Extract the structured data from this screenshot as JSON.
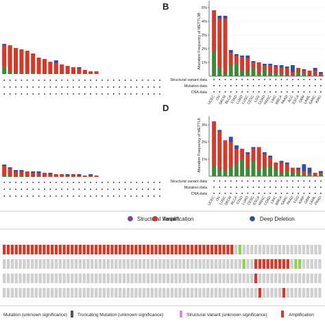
{
  "chart_data": [
    {
      "type": "stacked_bar",
      "categories": [
        null,
        null,
        null,
        null,
        null,
        null,
        null,
        null,
        null,
        null,
        null,
        null,
        null,
        null,
        null,
        null,
        null,
        null,
        null,
        null,
        null,
        null,
        null,
        null,
        null,
        null,
        null,
        null
      ],
      "ylim": [
        0,
        5.5
      ],
      "series": [
        {
          "color": "#3a8a3a",
          "values": [
            0.5,
            0.2,
            0.1,
            0.1,
            0.1,
            0.1,
            0,
            0,
            0,
            0,
            0,
            0,
            0,
            0,
            0,
            0,
            0,
            0,
            0,
            0,
            0,
            0,
            0,
            0,
            0,
            0,
            0,
            0
          ]
        },
        {
          "color": "#d33a2c",
          "values": [
            1.6,
            1.9,
            1.8,
            1.7,
            1.6,
            1.4,
            1.2,
            1.1,
            0.9,
            0.8,
            0.7,
            0.6,
            0.5,
            0.4,
            0.3,
            0.2,
            0.2,
            0,
            0,
            0,
            0,
            0,
            0,
            0,
            0,
            0,
            0,
            0
          ]
        },
        {
          "color": "#2f4fa8",
          "values": [
            0.1,
            0,
            0,
            0,
            0,
            0,
            0,
            0,
            0,
            0.2,
            0,
            0,
            0,
            0.1,
            0,
            0,
            0,
            0,
            0,
            0,
            0,
            0,
            0,
            0,
            0,
            0,
            0,
            0
          ]
        }
      ]
    },
    {
      "type": "stacked_bar",
      "panel": "B",
      "ylabel": "Alteration Frequency of METTL3B",
      "categories": [
        "UCEC",
        "OV",
        "SKCM",
        "BLCA",
        "STAD",
        "LUAD",
        "LUSC",
        "CESC",
        "LGG",
        "COAD",
        "HNSC",
        "LIHC",
        "BRCA",
        "PAAD",
        "ACC",
        "ESCA",
        "GBM",
        "LAML",
        "SARC",
        "KIRC"
      ],
      "ylim": [
        0,
        5.5
      ],
      "yticks": [
        {
          "value": 1,
          "label": "1%"
        },
        {
          "value": 2,
          "label": "2%"
        },
        {
          "value": 3,
          "label": "3%"
        },
        {
          "value": 4,
          "label": "4%"
        },
        {
          "value": 5,
          "label": "5%"
        }
      ],
      "row_labels": [
        "Structural variant data",
        "Mutation data",
        "CNA data"
      ],
      "series": [
        {
          "color": "#3a8a3a",
          "values": [
            1.8,
            0.6,
            0.2,
            0.8,
            0.9,
            0.4,
            0.3,
            0.6,
            0.2,
            0.5,
            0.2,
            0.2,
            0.2,
            0.1,
            0,
            0.3,
            0.2,
            0,
            0.1,
            0
          ]
        },
        {
          "color": "#d33a2c",
          "values": [
            3.0,
            3.6,
            4.0,
            0.9,
            0.6,
            1.0,
            1.0,
            0.4,
            0.8,
            0.3,
            0.6,
            0.5,
            0.4,
            0.5,
            0.3,
            0.3,
            0.2,
            0.4,
            0.3,
            0.2
          ]
        },
        {
          "color": "#2f4fa8",
          "values": [
            0,
            0.2,
            0.2,
            0.2,
            0.1,
            0.1,
            0.2,
            0.1,
            0,
            0.1,
            0.1,
            0.1,
            0.2,
            0.1,
            0.5,
            0,
            0.1,
            0,
            0.2,
            0.1
          ]
        }
      ]
    },
    {
      "type": "stacked_bar",
      "categories": [
        null,
        null,
        null,
        null,
        null,
        null,
        null,
        null,
        null,
        null,
        null,
        null,
        null,
        null,
        null,
        null,
        null,
        null,
        null,
        null,
        null,
        null,
        null,
        null,
        null,
        null,
        null,
        null
      ],
      "ylim": [
        0,
        5.5
      ],
      "series": [
        {
          "color": "#3a8a3a",
          "values": [
            0.1,
            0.1,
            0,
            0.1,
            0,
            0,
            0.1,
            0,
            0,
            0,
            0,
            0,
            0,
            0,
            0,
            0,
            0,
            0,
            0,
            0,
            0,
            0,
            0,
            0,
            0,
            0,
            0,
            0
          ]
        },
        {
          "color": "#d33a2c",
          "values": [
            0.7,
            0.5,
            0.4,
            0.3,
            0.4,
            0.3,
            0.2,
            0.3,
            0.2,
            0.2,
            0.2,
            0.1,
            0.2,
            0.1,
            0.1,
            0.1,
            0.1,
            0,
            0,
            0,
            0,
            0,
            0,
            0,
            0,
            0,
            0,
            0
          ]
        },
        {
          "color": "#2f4fa8",
          "values": [
            0.1,
            0.1,
            0.1,
            0.1,
            0,
            0.1,
            0.1,
            0,
            0.1,
            0,
            0,
            0.1,
            0,
            0.1,
            0,
            0.1,
            0,
            0,
            0,
            0,
            0,
            0,
            0,
            0,
            0,
            0,
            0,
            0
          ]
        }
      ]
    },
    {
      "type": "stacked_bar",
      "panel": "D",
      "ylabel": "Alteration Frequency of METTL8",
      "categories": [
        "UCEC",
        "OV",
        "LUSC",
        "SKCM",
        "BLCA",
        "STAD",
        "LUAD",
        "CESC",
        "ESCA",
        "HNSC",
        "COAD",
        "LIHC",
        "BRCA",
        "SARC",
        "PAAD",
        "LGG",
        "KIRP",
        "GBM",
        "LAML",
        "PRAD"
      ],
      "ylim": [
        0,
        3.5
      ],
      "yticks": [
        {
          "value": 1,
          "label": "1%"
        },
        {
          "value": 2,
          "label": "2%"
        },
        {
          "value": 3,
          "label": "3%"
        }
      ],
      "row_labels": [
        "Structural variant data",
        "Mutation data",
        "CNA data"
      ],
      "series": [
        {
          "color": "#3a8a3a",
          "values": [
            0.6,
            0.4,
            0.3,
            0.5,
            0.7,
            1.0,
            0.5,
            0.9,
            0.4,
            0.5,
            0.6,
            0.4,
            0.2,
            0.3,
            0.2,
            0.2,
            0.1,
            0.1,
            0,
            0.1
          ]
        },
        {
          "color": "#d33a2c",
          "values": [
            2.6,
            2.2,
            1.8,
            1.5,
            0.9,
            0.6,
            0.8,
            0.7,
            1.3,
            0.8,
            0.5,
            0.4,
            0.6,
            0.4,
            0.3,
            0.2,
            0.2,
            0.1,
            0.2,
            0.1
          ]
        },
        {
          "color": "#2f4fa8",
          "values": [
            0,
            0.1,
            0,
            0.3,
            0.2,
            0,
            0.1,
            0.1,
            0,
            0.1,
            0.1,
            0,
            0.1,
            0.1,
            0,
            0.1,
            0.4,
            0.3,
            0,
            0.1
          ]
        }
      ]
    }
  ],
  "legend": [
    {
      "name": "Structural Variant",
      "color": "#8a3fb0"
    },
    {
      "name": "Amplification",
      "color": "#d33a2c"
    },
    {
      "name": "Deep Deletion",
      "color": "#2f4fa8"
    }
  ],
  "oncoprint": {
    "cell_colors": {
      "g": "#cfcfcf",
      "a": "#d33a2c",
      "m": "#8fd14f"
    },
    "tracks": [
      "aaaaaaaaaaaaaaaaaaaaaaaaaaaaaaaaaaaaaaaaaaaaaaaaaaaaaaaaaagmgggggggggggggggggggg",
      "ggggggggggggggggggggggggggggggggggggggggggggggggggggggggggggmggaaaaaaaaagmmggggg",
      "gggggggggggggggggggggggggggggggggggggggggggggggggggggggggggggggagggggggggggggggg",
      "ggggggggggggggggggggggggggggggggggggggggggggggggggggggggggggggggagggggaggggggggg"
    ],
    "legend": [
      {
        "name": "Mutation (unknown significance)",
        "color": "#8fd14f"
      },
      {
        "name": "Truncating Mutation (unknown significance)",
        "color": "#555555"
      },
      {
        "name": "Structural Variant (unknown significance)",
        "color": "#d68ee0"
      },
      {
        "name": "Amplification",
        "color": "#d33a2c"
      }
    ]
  }
}
